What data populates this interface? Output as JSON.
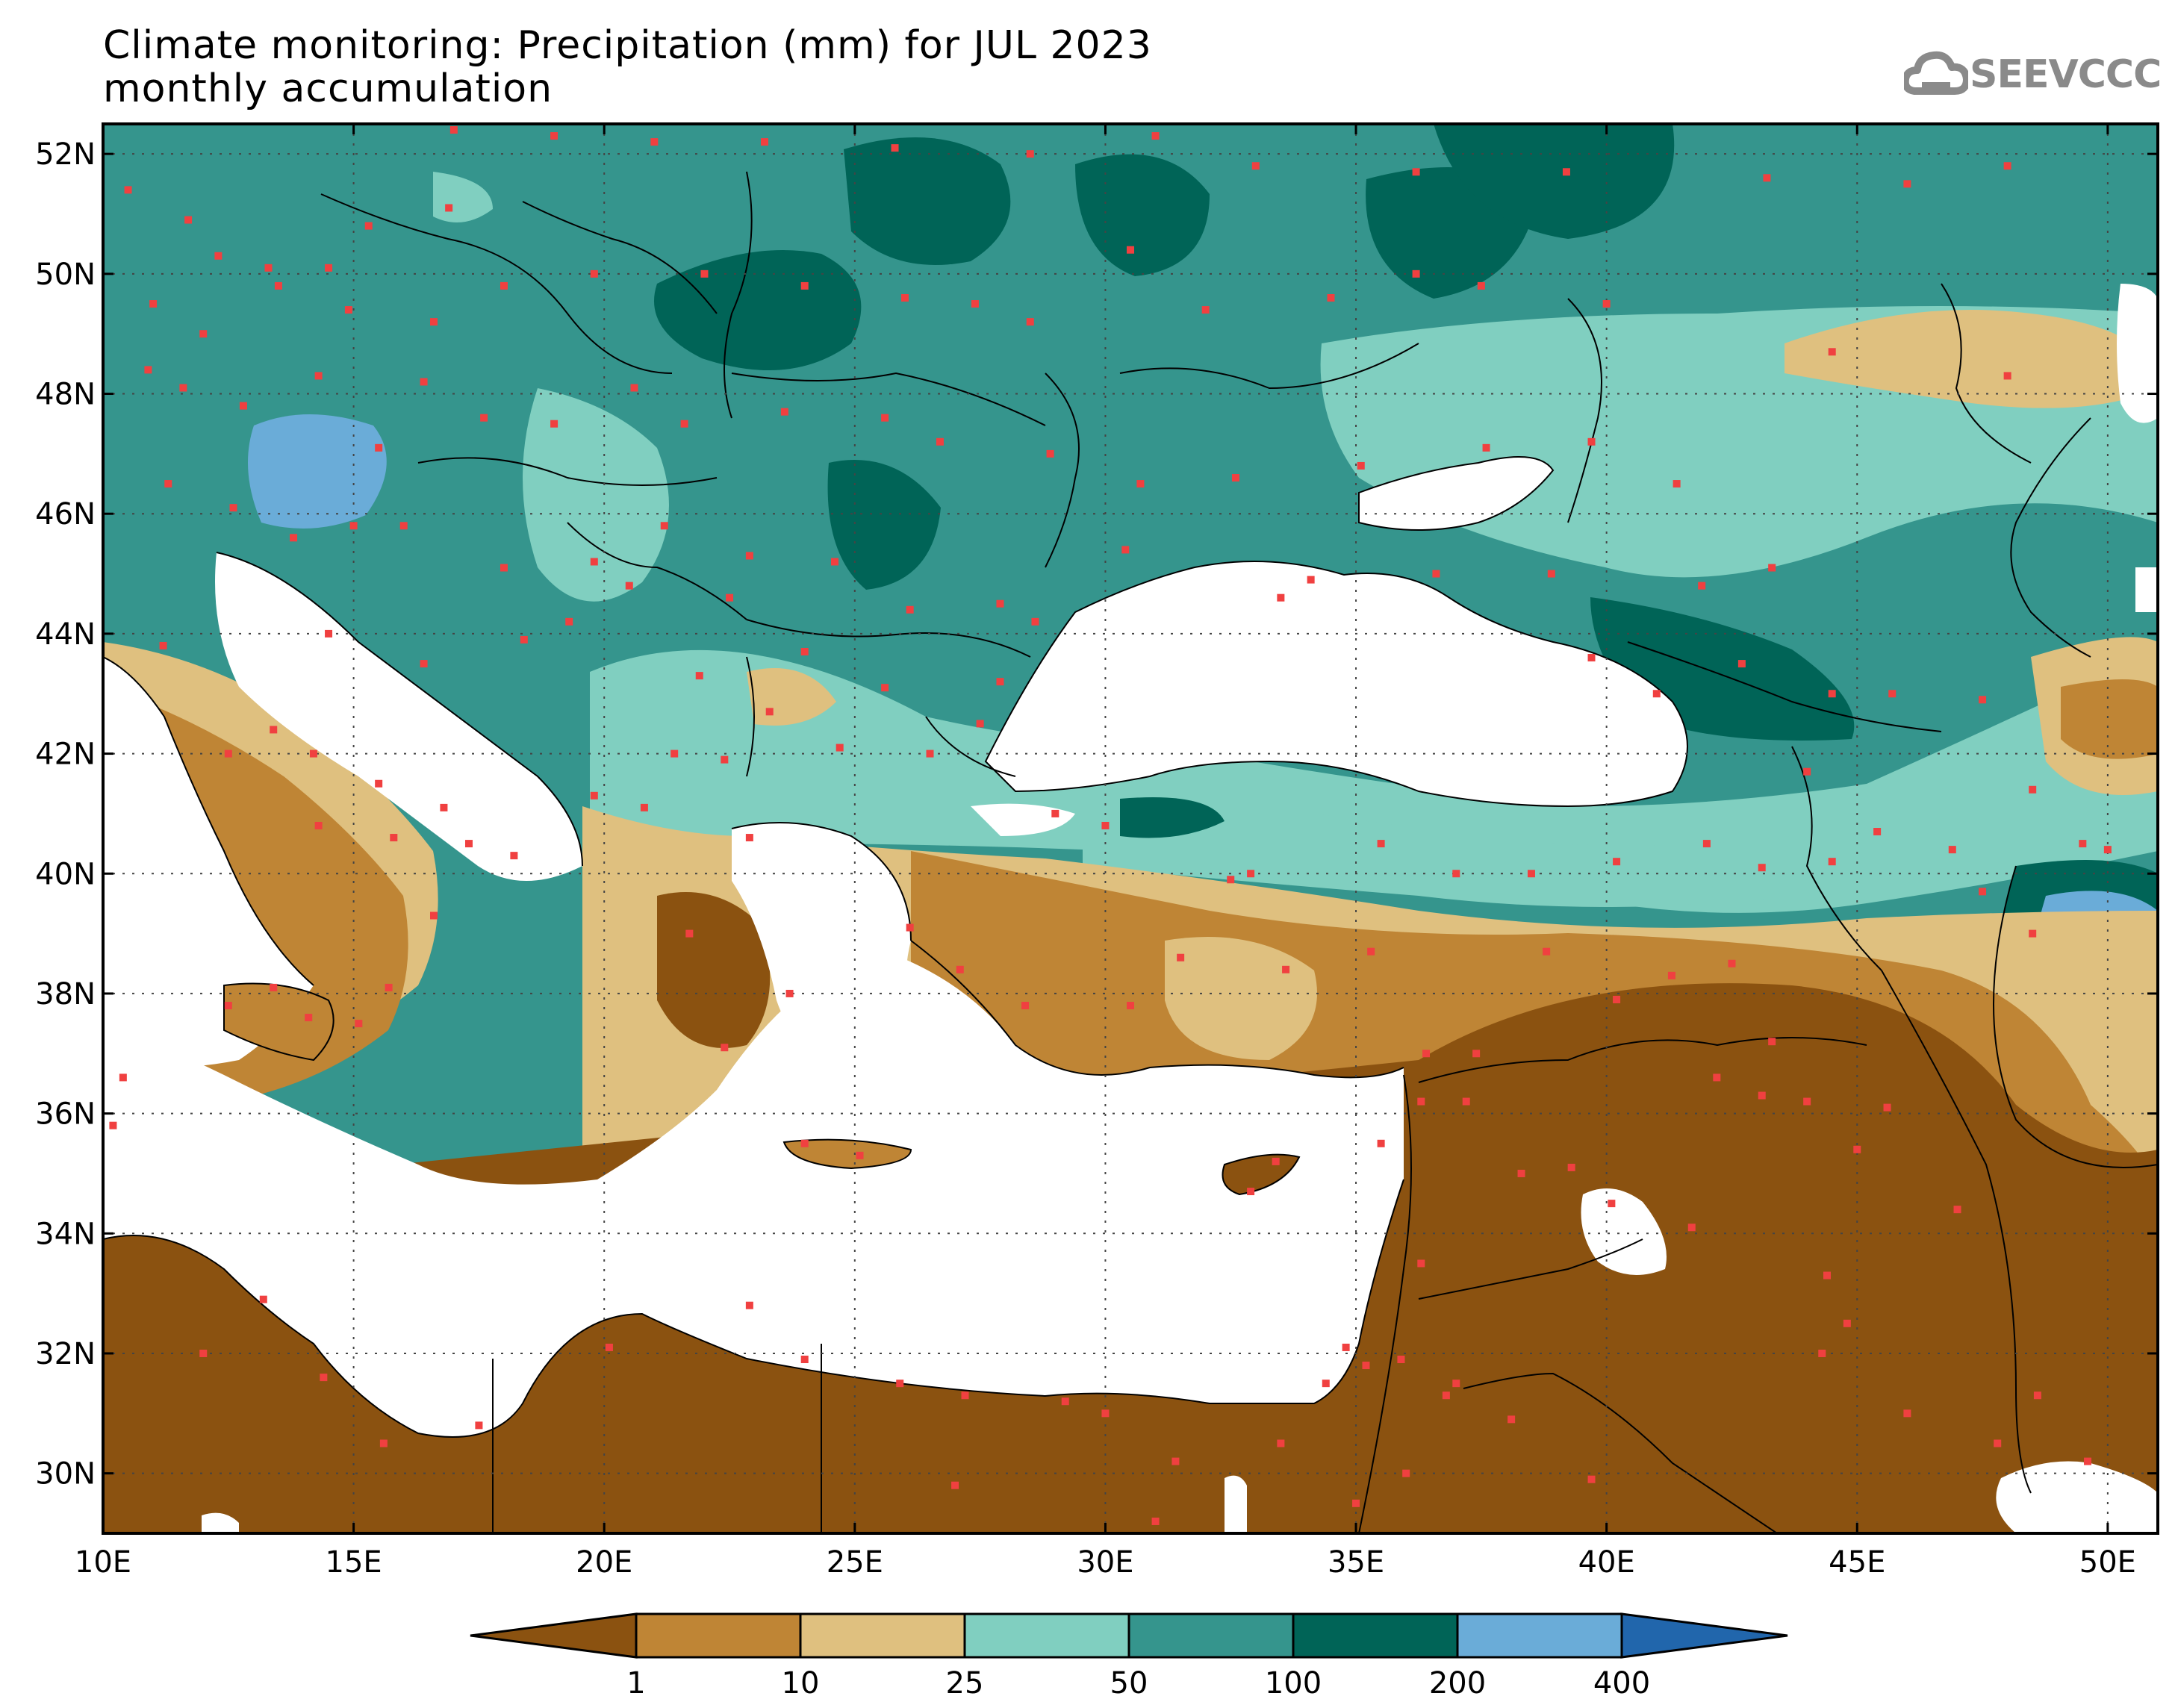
{
  "title": {
    "line1": "Climate monitoring: Precipitation (mm) for JUL 2023",
    "line2": "monthly accumulation"
  },
  "logo": {
    "text": "SEEVCCC",
    "icon": "cloud-icon"
  },
  "map": {
    "lon_range": [
      10,
      51
    ],
    "lat_range": [
      29,
      52.5
    ],
    "lon_ticks": [
      "10E",
      "15E",
      "20E",
      "25E",
      "30E",
      "35E",
      "40E",
      "45E",
      "50E"
    ],
    "lat_ticks": [
      "30N",
      "32N",
      "34N",
      "36N",
      "38N",
      "40N",
      "42N",
      "44N",
      "46N",
      "48N",
      "50N",
      "52N"
    ],
    "grid": "dotted",
    "station_marker_color": "#f04040"
  },
  "colorbar": {
    "labels": [
      "1",
      "10",
      "25",
      "50",
      "100",
      "200",
      "400"
    ],
    "colors": [
      "#8b5210",
      "#bf8535",
      "#dfc07f",
      "#80cfc0",
      "#35958d",
      "#006457",
      "#6aacd8",
      "#2166ac"
    ]
  }
}
